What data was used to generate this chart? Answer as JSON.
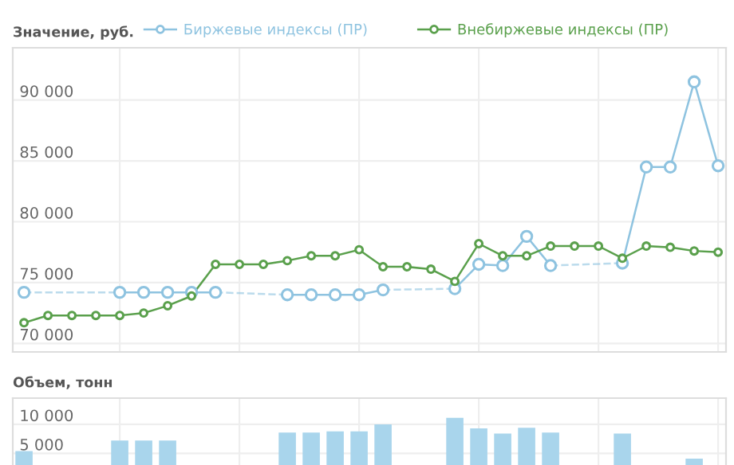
{
  "chart_data": [
    {
      "type": "line",
      "ylabel": "Значение, руб.",
      "categories": [
        null,
        null,
        null,
        null,
        null,
        null,
        null,
        null,
        null,
        null,
        null,
        null,
        null,
        null,
        null,
        null,
        null,
        null,
        null,
        null,
        null,
        null,
        null,
        null,
        null,
        null,
        null,
        null,
        null,
        null
      ],
      "series": [
        {
          "name": "Биржевые индексы (ПР)",
          "color": "#8ec3e0",
          "values": [
            74200,
            null,
            null,
            null,
            74200,
            74200,
            74200,
            74200,
            74200,
            null,
            null,
            74000,
            74000,
            74000,
            74000,
            74400,
            null,
            null,
            74500,
            76500,
            76400,
            78800,
            76400,
            null,
            null,
            76600,
            84500,
            84500,
            91500,
            84600
          ]
        },
        {
          "name": "Внебиржевые индексы (ПР)",
          "color": "#5aa04c",
          "values": [
            71700,
            72300,
            72300,
            72300,
            72300,
            72500,
            73100,
            73900,
            76500,
            76500,
            76500,
            76800,
            77200,
            77200,
            77700,
            76300,
            76300,
            76100,
            75100,
            78200,
            77200,
            77200,
            78000,
            78000,
            78000,
            77000,
            78000,
            77900,
            77600,
            77500
          ]
        }
      ],
      "ylim": [
        69300,
        94300
      ],
      "yticks": [
        {
          "value": 70000,
          "label": "70 000"
        },
        {
          "value": 75000,
          "label": "75 000"
        },
        {
          "value": 80000,
          "label": "80 000"
        },
        {
          "value": 85000,
          "label": "85 000"
        },
        {
          "value": 90000,
          "label": "90 000"
        }
      ],
      "grid": true,
      "legend": "top",
      "marker": "circle",
      "tick_labels": "y"
    },
    {
      "type": "bar",
      "ylabel": "Объем, тонн",
      "categories": [
        null,
        null,
        null,
        null,
        null,
        null,
        null,
        null,
        null,
        null,
        null,
        null,
        null,
        null,
        null,
        null,
        null,
        null,
        null,
        null,
        null,
        null,
        null,
        null,
        null,
        null,
        null,
        null,
        null,
        null
      ],
      "series": [
        {
          "color": "#a9d5ec",
          "values": [
            5400,
            null,
            null,
            null,
            7200,
            7200,
            7200,
            null,
            null,
            null,
            null,
            8600,
            8600,
            8800,
            8800,
            10000,
            null,
            null,
            11100,
            9300,
            8400,
            9400,
            8600,
            null,
            null,
            8400,
            null,
            null,
            4100,
            null
          ]
        }
      ],
      "ylim": [
        0,
        14500
      ],
      "yticks": [
        {
          "value": 5000,
          "label": "5 000"
        },
        {
          "value": 10000,
          "label": "10 000"
        }
      ],
      "grid": true,
      "tick_labels": "y"
    }
  ]
}
